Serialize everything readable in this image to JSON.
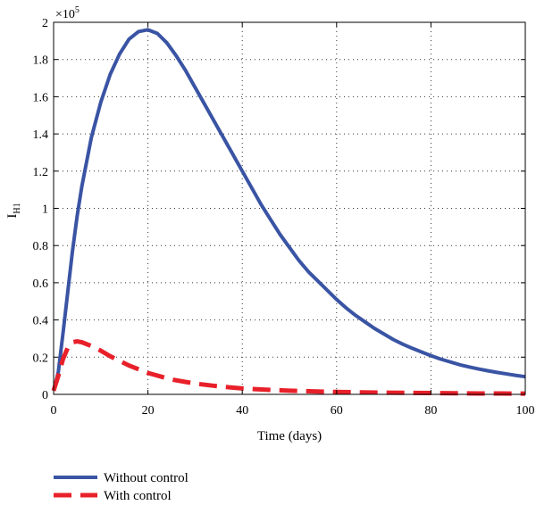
{
  "chart_data": {
    "type": "line",
    "xlabel": "Time (days)",
    "ylabel": "I",
    "ylabel_subscript": "H1",
    "y_multiplier": "×10",
    "y_multiplier_exponent": "5",
    "xlim": [
      0,
      100
    ],
    "ylim": [
      0,
      2
    ],
    "x_ticks": [
      0,
      20,
      40,
      60,
      80,
      100
    ],
    "y_ticks": [
      0,
      0.2,
      0.4,
      0.6,
      0.8,
      1,
      1.2,
      1.4,
      1.6,
      1.8,
      2
    ],
    "grid": true,
    "legend_position": "bottom-left",
    "series": [
      {
        "name": "Without control",
        "color": "#3a54a4",
        "style": "solid",
        "x": [
          0,
          1,
          2,
          3,
          4,
          5,
          6,
          8,
          10,
          12,
          14,
          16,
          18,
          20,
          22,
          24,
          26,
          28,
          30,
          32,
          34,
          36,
          38,
          40,
          42,
          44,
          46,
          48,
          50,
          52,
          54,
          56,
          58,
          60,
          62,
          64,
          66,
          68,
          70,
          72,
          74,
          76,
          78,
          80,
          82,
          84,
          86,
          88,
          90,
          92,
          94,
          96,
          98,
          100
        ],
        "y": [
          0.02,
          0.12,
          0.33,
          0.55,
          0.77,
          0.96,
          1.12,
          1.38,
          1.57,
          1.72,
          1.83,
          1.91,
          1.95,
          1.96,
          1.94,
          1.89,
          1.82,
          1.74,
          1.65,
          1.56,
          1.47,
          1.38,
          1.29,
          1.2,
          1.11,
          1.02,
          0.94,
          0.86,
          0.79,
          0.72,
          0.66,
          0.61,
          0.56,
          0.51,
          0.465,
          0.425,
          0.39,
          0.355,
          0.325,
          0.295,
          0.27,
          0.248,
          0.228,
          0.208,
          0.19,
          0.175,
          0.16,
          0.148,
          0.137,
          0.127,
          0.118,
          0.11,
          0.102,
          0.095
        ]
      },
      {
        "name": "With control",
        "color": "#e8202a",
        "style": "dashed",
        "x": [
          0,
          1,
          2,
          3,
          4,
          5,
          6,
          8,
          10,
          12,
          14,
          16,
          18,
          20,
          25,
          30,
          35,
          40,
          45,
          50,
          55,
          60,
          65,
          70,
          75,
          80,
          85,
          90,
          95,
          100
        ],
        "y": [
          0.02,
          0.1,
          0.19,
          0.25,
          0.28,
          0.285,
          0.28,
          0.26,
          0.235,
          0.205,
          0.18,
          0.155,
          0.135,
          0.115,
          0.08,
          0.058,
          0.043,
          0.032,
          0.025,
          0.02,
          0.016,
          0.013,
          0.011,
          0.009,
          0.008,
          0.007,
          0.006,
          0.005,
          0.0045,
          0.004
        ]
      }
    ]
  }
}
